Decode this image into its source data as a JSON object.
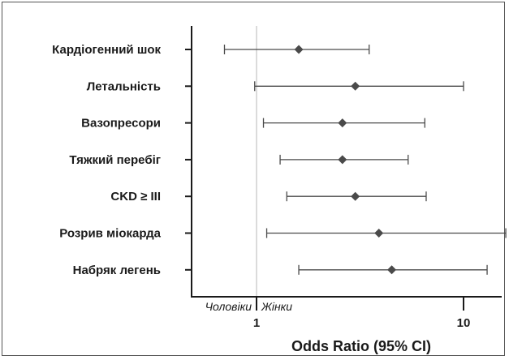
{
  "chart_data": {
    "type": "forest",
    "categories": [
      "Кардіогенний шок",
      "Летальність",
      "Вазопресори",
      "Тяжкий перебіг",
      "CKD ≥ III",
      "Розрив міокарда",
      "Набряк легень"
    ],
    "series": [
      {
        "estimate": [
          1.6,
          3.0,
          2.6,
          2.6,
          3.0,
          3.9,
          4.5
        ],
        "ci_low": [
          0.7,
          0.98,
          1.08,
          1.3,
          1.4,
          1.12,
          1.6
        ],
        "ci_high": [
          3.5,
          10.0,
          6.5,
          5.4,
          6.6,
          16.0,
          13.0
        ]
      }
    ],
    "xscale": "log",
    "xlim": [
      0.6,
      16.5
    ],
    "reference_line": 1,
    "xticks": [
      1,
      10
    ],
    "xtick_labels": [
      "1",
      "10"
    ],
    "xlabel": "Odds Ratio (95% CI)",
    "left_side_label": "Чоловіки",
    "right_side_label": "Жінки",
    "colors": {
      "marker": "#4a4a4a",
      "whisker": "#4a4a4a",
      "reference": "#c8c8c8",
      "axis": "#1a1a1a"
    }
  }
}
